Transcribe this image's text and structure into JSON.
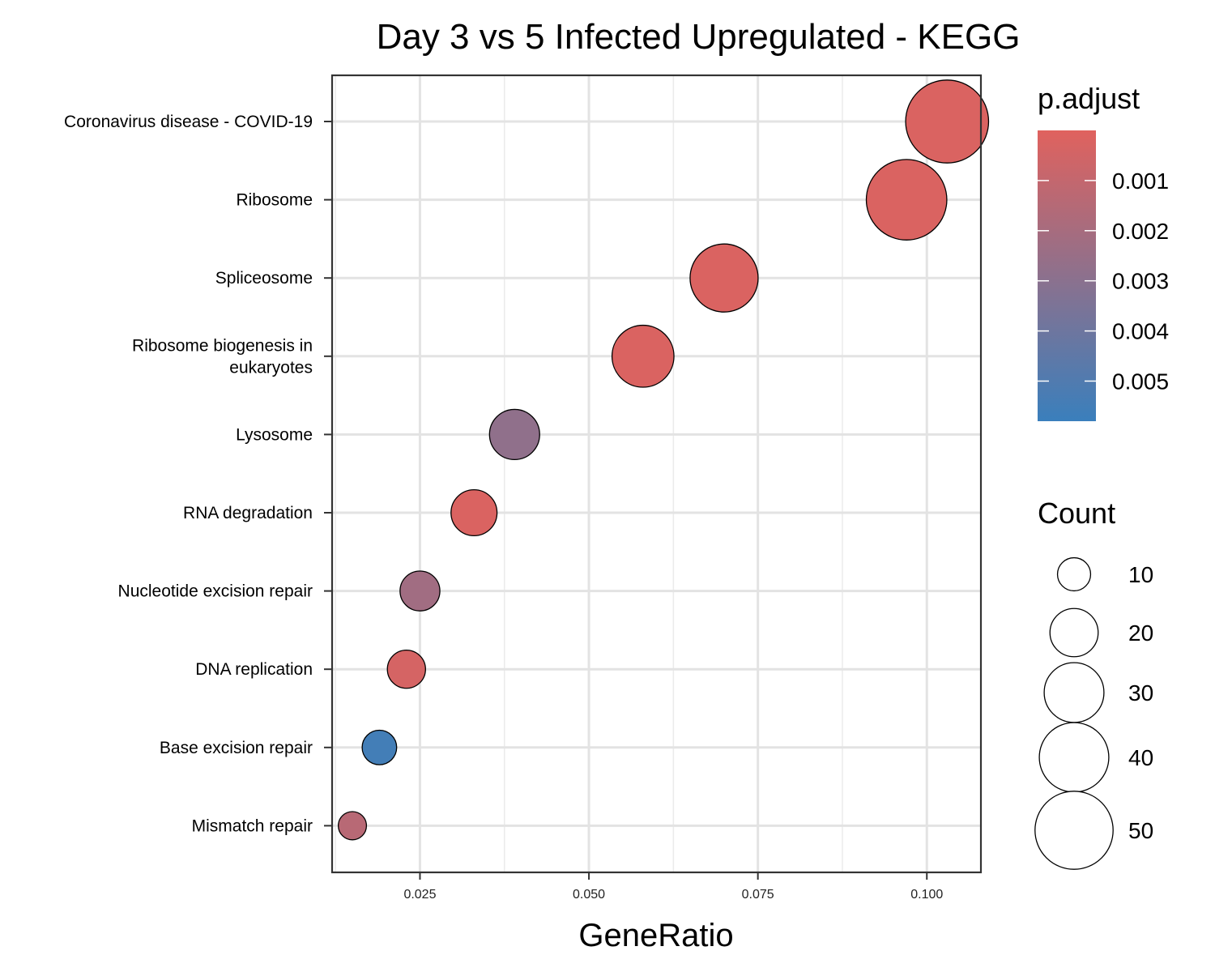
{
  "chart_data": {
    "type": "scatter",
    "title": "Day 3 vs 5 Infected Upregulated - KEGG",
    "xlabel": "GeneRatio",
    "ylabel": "",
    "xlim": [
      0.012,
      0.108
    ],
    "x_ticks": [
      "0.025",
      "0.050",
      "0.075",
      "0.100"
    ],
    "x_tick_values": [
      0.025,
      0.05,
      0.075,
      0.1
    ],
    "grid": true,
    "categories": [
      "Coronavirus disease - COVID-19",
      "Ribosome",
      "Spliceosome",
      "Ribosome biogenesis in eukaryotes",
      "Lysosome",
      "RNA degradation",
      "Nucleotide excision repair",
      "DNA replication",
      "Base excision repair",
      "Mismatch repair"
    ],
    "category_lines": [
      [
        "Coronavirus disease - COVID-19"
      ],
      [
        "Ribosome"
      ],
      [
        "Spliceosome"
      ],
      [
        "Ribosome biogenesis in",
        "eukaryotes"
      ],
      [
        "Lysosome"
      ],
      [
        "RNA degradation"
      ],
      [
        "Nucleotide excision repair"
      ],
      [
        "DNA replication"
      ],
      [
        "Base excision repair"
      ],
      [
        "Mismatch repair"
      ]
    ],
    "points": [
      {
        "term": "Coronavirus disease - COVID-19",
        "gene_ratio": 0.103,
        "count": 52,
        "p_adjust": 0.0002
      },
      {
        "term": "Ribosome",
        "gene_ratio": 0.097,
        "count": 49,
        "p_adjust": 0.0002
      },
      {
        "term": "Spliceosome",
        "gene_ratio": 0.07,
        "count": 35,
        "p_adjust": 0.0002
      },
      {
        "term": "Ribosome biogenesis in eukaryotes",
        "gene_ratio": 0.058,
        "count": 29,
        "p_adjust": 0.0002
      },
      {
        "term": "Lysosome",
        "gene_ratio": 0.039,
        "count": 19,
        "p_adjust": 0.0028
      },
      {
        "term": "RNA degradation",
        "gene_ratio": 0.033,
        "count": 16,
        "p_adjust": 0.0002
      },
      {
        "term": "Nucleotide excision repair",
        "gene_ratio": 0.025,
        "count": 12,
        "p_adjust": 0.0022
      },
      {
        "term": "DNA replication",
        "gene_ratio": 0.023,
        "count": 11,
        "p_adjust": 0.0004
      },
      {
        "term": "Base excision repair",
        "gene_ratio": 0.019,
        "count": 9,
        "p_adjust": 0.0055
      },
      {
        "term": "Mismatch repair",
        "gene_ratio": 0.015,
        "count": 6,
        "p_adjust": 0.0014
      }
    ],
    "color_legend": {
      "title": "p.adjust",
      "range": [
        0.0,
        0.0058
      ],
      "high_color": "#e0625e",
      "low_color": "#3a7fbc",
      "ticks": [
        "0.001",
        "0.002",
        "0.003",
        "0.004",
        "0.005"
      ],
      "tick_values": [
        0.001,
        0.002,
        0.003,
        0.004,
        0.005
      ]
    },
    "size_legend": {
      "title": "Count",
      "labels": [
        "10",
        "20",
        "30",
        "40",
        "50"
      ],
      "values": [
        10,
        20,
        30,
        40,
        50
      ]
    }
  }
}
